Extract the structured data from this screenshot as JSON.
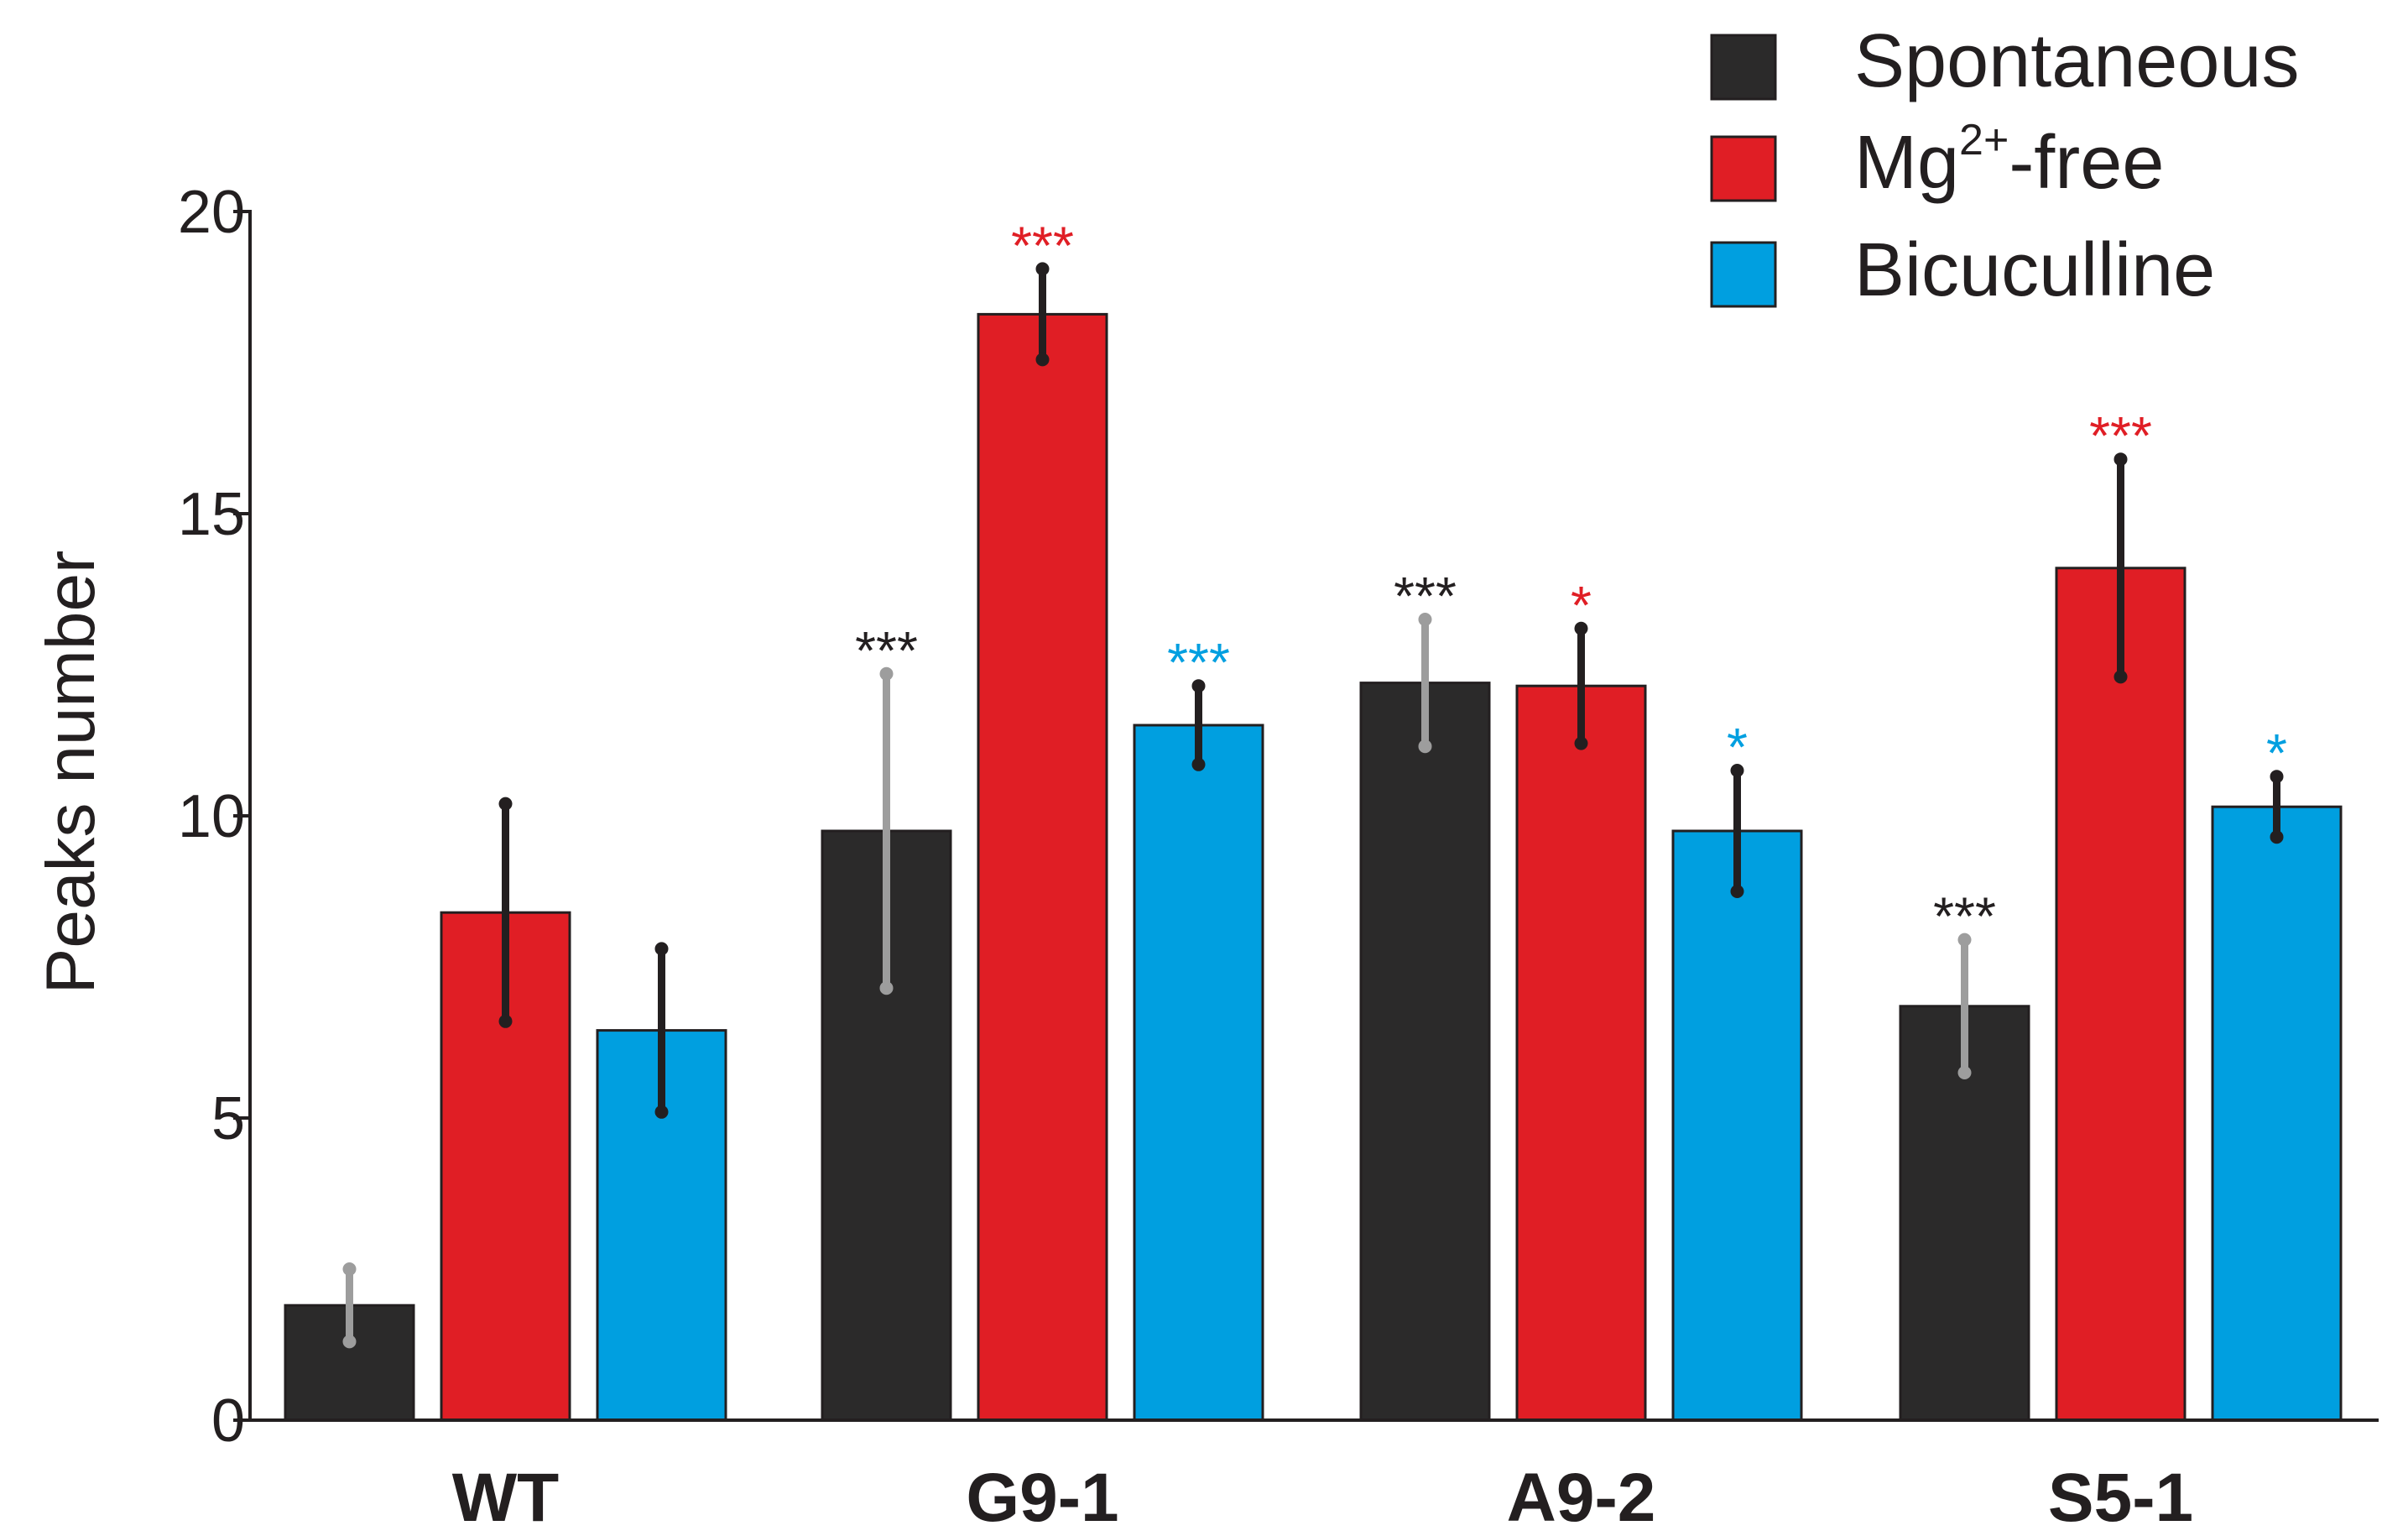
{
  "chart_data": {
    "type": "bar",
    "title": "",
    "xlabel": "",
    "ylabel": "Peaks number",
    "ylim": [
      0,
      20
    ],
    "yticks": [
      0,
      5,
      10,
      15,
      20
    ],
    "categories": [
      "WT",
      "G9-1",
      "A9-2",
      "S5-1"
    ],
    "legend_position": "top-right",
    "series": [
      {
        "name": "Spontaneous",
        "name_parts": {
          "base": "Spontaneous"
        },
        "color": "#2b2a2a",
        "error_color": "#9d9d9d",
        "sig_color": "#231f20",
        "values": [
          1.9,
          9.75,
          12.2,
          6.85
        ],
        "errors": [
          0.6,
          2.6,
          1.05,
          1.1
        ],
        "significance": [
          "",
          "***",
          "***",
          "***"
        ]
      },
      {
        "name": "Mg2+-free",
        "name_parts": {
          "base": "Mg",
          "sup": "2+",
          "rest": "-free"
        },
        "color": "#e01e25",
        "error_color": "#231f20",
        "sig_color": "#e01e25",
        "values": [
          8.4,
          18.3,
          12.15,
          14.1
        ],
        "errors": [
          1.8,
          0.75,
          0.95,
          1.8
        ],
        "significance": [
          "",
          "***",
          "*",
          "***"
        ]
      },
      {
        "name": "Bicuculline",
        "name_parts": {
          "base": "Bicuculline"
        },
        "color": "#009fe0",
        "error_color": "#231f20",
        "sig_color": "#009fe0",
        "values": [
          6.45,
          11.5,
          9.75,
          10.15
        ],
        "errors": [
          1.35,
          0.65,
          1.0,
          0.5
        ],
        "significance": [
          "",
          "***",
          "*",
          "*"
        ]
      }
    ]
  }
}
